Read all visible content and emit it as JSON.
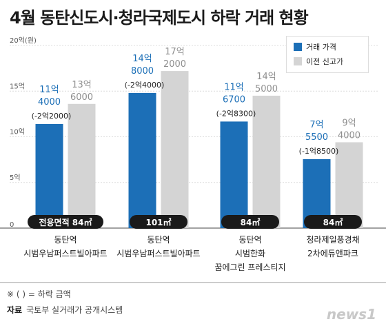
{
  "title": "4월 동탄신도시·청라국제도시 하락 거래 현황",
  "legend": {
    "trade_price": "거래 가격",
    "previous_high": "이전 신고가"
  },
  "colors": {
    "trade_price": "#1c6fb7",
    "previous_high": "#d4d4d4"
  },
  "note": "※ (       ) = 하락 금액",
  "source_label": "자료",
  "source": "국토부 실거래가 공개시스템",
  "brand": "news1",
  "chart_data": {
    "type": "bar",
    "unit_label": "20억(원)",
    "ylim": [
      0,
      20
    ],
    "yticks": [
      {
        "value": 0,
        "label": "0"
      },
      {
        "value": 5,
        "label": "5억"
      },
      {
        "value": 10,
        "label": "10억"
      },
      {
        "value": 15,
        "label": "15억"
      },
      {
        "value": 20,
        "label": "20억(원)"
      }
    ],
    "categories": [
      {
        "name": [
          "동탄역",
          "시범우남퍼스트빌아파트"
        ],
        "area": "전용면적 84㎡"
      },
      {
        "name": [
          "동탄역",
          "시범우남퍼스트빌아파트"
        ],
        "area": "101㎡"
      },
      {
        "name": [
          "동탄역",
          "시범한화",
          "꿈에그린 프레스티지"
        ],
        "area": "84㎡"
      },
      {
        "name": [
          "청라제일풍경채",
          "2차에듀앤파크"
        ],
        "area": "84㎡"
      }
    ],
    "series": [
      {
        "name": "거래 가격",
        "values": [
          11.4,
          14.8,
          11.67,
          7.55
        ],
        "labels": [
          [
            "11억",
            "4000"
          ],
          [
            "14억",
            "8000"
          ],
          [
            "11억",
            "6700"
          ],
          [
            "7억",
            "5500"
          ]
        ]
      },
      {
        "name": "이전 신고가",
        "values": [
          13.6,
          17.2,
          14.5,
          9.4
        ],
        "labels": [
          [
            "13억",
            "6000"
          ],
          [
            "17억",
            "2000"
          ],
          [
            "14억",
            "5000"
          ],
          [
            "9억",
            "4000"
          ]
        ]
      }
    ],
    "drops": [
      "(-2억2000)",
      "(-2억4000)",
      "(-2억8300)",
      "(-1억8500)"
    ]
  }
}
